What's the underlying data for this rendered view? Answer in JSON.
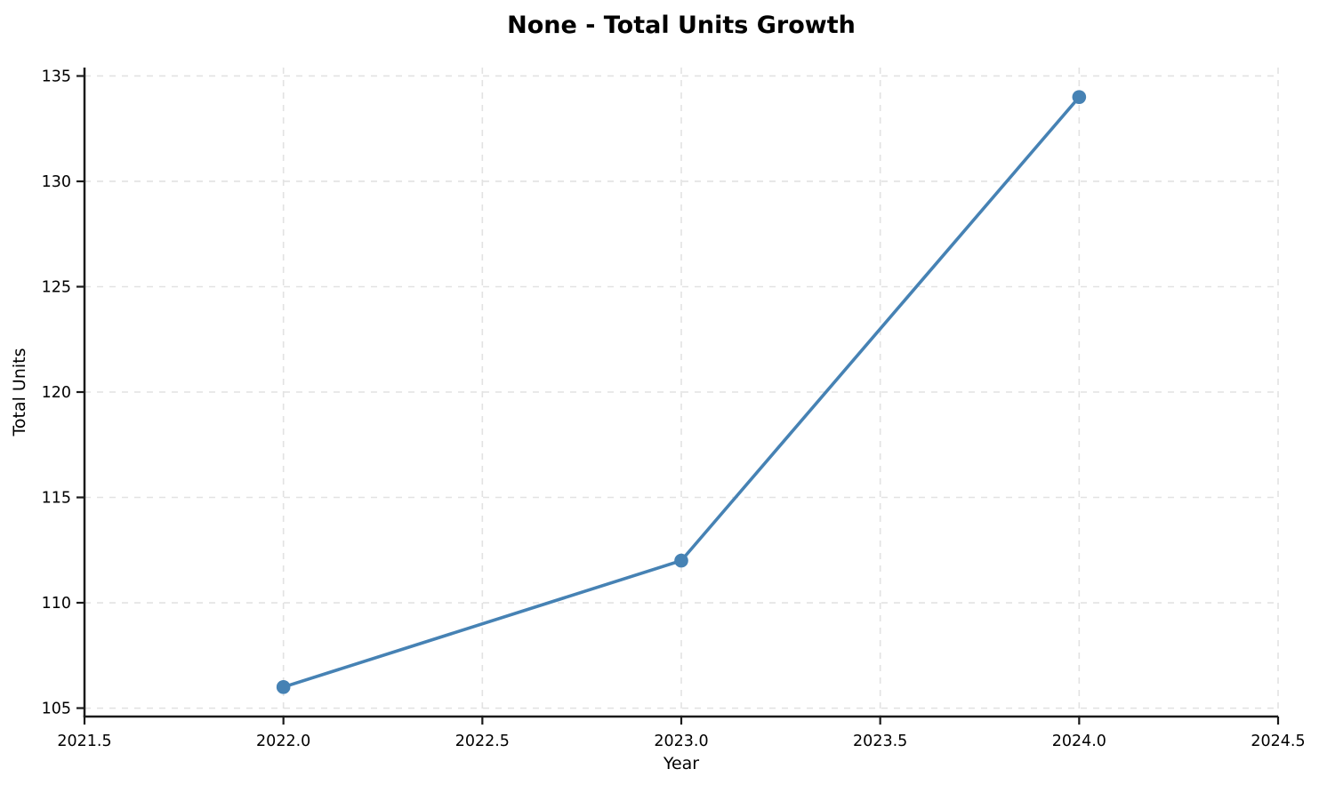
{
  "chart_data": {
    "type": "line",
    "title": "None - Total Units Growth",
    "xlabel": "Year",
    "ylabel": "Total Units",
    "x": [
      2022,
      2023,
      2024
    ],
    "series": [
      {
        "name": "Total Units",
        "values": [
          106,
          112,
          134
        ]
      }
    ],
    "xlim": [
      2021.5,
      2024.5
    ],
    "ylim": [
      104.6,
      135.4
    ],
    "xticks": [
      2021.5,
      2022.0,
      2022.5,
      2023.0,
      2023.5,
      2024.0,
      2024.5
    ],
    "xtick_labels": [
      "2021.5",
      "2022.0",
      "2022.5",
      "2023.0",
      "2023.5",
      "2024.0",
      "2024.5"
    ],
    "yticks": [
      105,
      110,
      115,
      120,
      125,
      130,
      135
    ],
    "ytick_labels": [
      "105",
      "110",
      "115",
      "120",
      "125",
      "130",
      "135"
    ],
    "grid": true,
    "legend_visible": false,
    "colors": {
      "line": "#4682B4",
      "marker": "#4682B4",
      "grid": "#e2e2e2",
      "spine": "#1a1a1a",
      "text": "#000000",
      "background": "#ffffff"
    },
    "line_width": 3.6,
    "marker_radius": 7.8,
    "marker_shape": "circle"
  }
}
